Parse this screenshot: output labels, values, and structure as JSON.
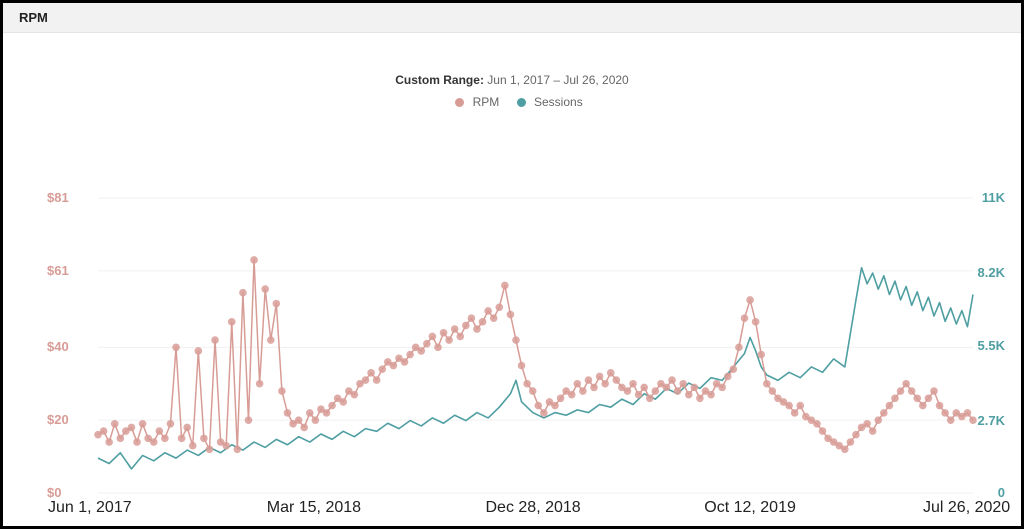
{
  "header": {
    "title": "RPM"
  },
  "range": {
    "label": "Custom Range:",
    "text": "Jun 1, 2017 – Jul 26, 2020"
  },
  "legend": [
    {
      "color": "#d89c96",
      "label": "RPM"
    },
    {
      "color": "#4e9ea2",
      "label": "Sessions"
    }
  ],
  "chart": {
    "type": "dual-axis-line",
    "background_color": "#ffffff",
    "grid_color": "#f0f0f0",
    "x": {
      "ticks": [
        "Jun 1, 2017",
        "Mar 15, 2018",
        "Dec 28, 2018",
        "Oct 12, 2019",
        "Jul 26, 2020"
      ],
      "tick_fontsize": 16,
      "tick_color": "#222222"
    },
    "y_left": {
      "min": 0,
      "max": 81,
      "ticks": [
        0,
        20,
        40,
        61,
        81
      ],
      "tick_labels": [
        "$0",
        "$20",
        "$40",
        "$61",
        "$81"
      ],
      "color": "#d89c96",
      "fontsize": 13
    },
    "y_right": {
      "min": 0,
      "max": 11000,
      "ticks": [
        0,
        2700,
        5500,
        8200,
        11000
      ],
      "tick_labels": [
        "0",
        "2.7K",
        "5.5K",
        "8.2K",
        "11K"
      ],
      "color": "#4e9ea2",
      "fontsize": 13
    },
    "series": {
      "rpm": {
        "color": "#d89c96",
        "line_width": 1.5,
        "marker_radius": 3.8,
        "marker_opacity": 0.85,
        "data": [
          [
            0,
            16
          ],
          [
            1,
            17
          ],
          [
            2,
            14
          ],
          [
            3,
            19
          ],
          [
            4,
            15
          ],
          [
            5,
            17
          ],
          [
            6,
            18
          ],
          [
            7,
            14
          ],
          [
            8,
            19
          ],
          [
            9,
            15
          ],
          [
            10,
            14
          ],
          [
            11,
            17
          ],
          [
            12,
            15
          ],
          [
            13,
            19
          ],
          [
            14,
            40
          ],
          [
            15,
            15
          ],
          [
            16,
            18
          ],
          [
            17,
            13
          ],
          [
            18,
            39
          ],
          [
            19,
            15
          ],
          [
            20,
            12
          ],
          [
            21,
            42
          ],
          [
            22,
            14
          ],
          [
            23,
            13
          ],
          [
            24,
            47
          ],
          [
            25,
            12
          ],
          [
            26,
            55
          ],
          [
            27,
            20
          ],
          [
            28,
            64
          ],
          [
            29,
            30
          ],
          [
            30,
            56
          ],
          [
            31,
            42
          ],
          [
            32,
            52
          ],
          [
            33,
            28
          ],
          [
            34,
            22
          ],
          [
            35,
            19
          ],
          [
            36,
            20
          ],
          [
            37,
            18
          ],
          [
            38,
            22
          ],
          [
            39,
            20
          ],
          [
            40,
            23
          ],
          [
            41,
            22
          ],
          [
            42,
            24
          ],
          [
            43,
            26
          ],
          [
            44,
            25
          ],
          [
            45,
            28
          ],
          [
            46,
            27
          ],
          [
            47,
            30
          ],
          [
            48,
            31
          ],
          [
            49,
            33
          ],
          [
            50,
            31
          ],
          [
            51,
            34
          ],
          [
            52,
            36
          ],
          [
            53,
            35
          ],
          [
            54,
            37
          ],
          [
            55,
            36
          ],
          [
            56,
            38
          ],
          [
            57,
            40
          ],
          [
            58,
            39
          ],
          [
            59,
            41
          ],
          [
            60,
            43
          ],
          [
            61,
            40
          ],
          [
            62,
            44
          ],
          [
            63,
            42
          ],
          [
            64,
            45
          ],
          [
            65,
            43
          ],
          [
            66,
            46
          ],
          [
            67,
            48
          ],
          [
            68,
            45
          ],
          [
            69,
            47
          ],
          [
            70,
            50
          ],
          [
            71,
            48
          ],
          [
            72,
            51
          ],
          [
            73,
            57
          ],
          [
            74,
            49
          ],
          [
            75,
            42
          ],
          [
            76,
            35
          ],
          [
            77,
            30
          ],
          [
            78,
            28
          ],
          [
            79,
            24
          ],
          [
            80,
            22
          ],
          [
            81,
            25
          ],
          [
            82,
            24
          ],
          [
            83,
            26
          ],
          [
            84,
            28
          ],
          [
            85,
            27
          ],
          [
            86,
            30
          ],
          [
            87,
            28
          ],
          [
            88,
            31
          ],
          [
            89,
            29
          ],
          [
            90,
            32
          ],
          [
            91,
            30
          ],
          [
            92,
            33
          ],
          [
            93,
            31
          ],
          [
            94,
            29
          ],
          [
            95,
            28
          ],
          [
            96,
            30
          ],
          [
            97,
            27
          ],
          [
            98,
            29
          ],
          [
            99,
            26
          ],
          [
            100,
            28
          ],
          [
            101,
            30
          ],
          [
            102,
            29
          ],
          [
            103,
            31
          ],
          [
            104,
            28
          ],
          [
            105,
            30
          ],
          [
            106,
            27
          ],
          [
            107,
            29
          ],
          [
            108,
            26
          ],
          [
            109,
            28
          ],
          [
            110,
            27
          ],
          [
            111,
            30
          ],
          [
            112,
            29
          ],
          [
            113,
            32
          ],
          [
            114,
            34
          ],
          [
            115,
            40
          ],
          [
            116,
            48
          ],
          [
            117,
            53
          ],
          [
            118,
            47
          ],
          [
            119,
            38
          ],
          [
            120,
            30
          ],
          [
            121,
            28
          ],
          [
            122,
            26
          ],
          [
            123,
            25
          ],
          [
            124,
            24
          ],
          [
            125,
            22
          ],
          [
            126,
            24
          ],
          [
            127,
            21
          ],
          [
            128,
            20
          ],
          [
            129,
            19
          ],
          [
            130,
            17
          ],
          [
            131,
            15
          ],
          [
            132,
            14
          ],
          [
            133,
            13
          ],
          [
            134,
            12
          ],
          [
            135,
            14
          ],
          [
            136,
            16
          ],
          [
            137,
            18
          ],
          [
            138,
            19
          ],
          [
            139,
            17
          ],
          [
            140,
            20
          ],
          [
            141,
            22
          ],
          [
            142,
            24
          ],
          [
            143,
            26
          ],
          [
            144,
            28
          ],
          [
            145,
            30
          ],
          [
            146,
            28
          ],
          [
            147,
            26
          ],
          [
            148,
            24
          ],
          [
            149,
            26
          ],
          [
            150,
            28
          ],
          [
            151,
            24
          ],
          [
            152,
            22
          ],
          [
            153,
            20
          ],
          [
            154,
            22
          ],
          [
            155,
            21
          ],
          [
            156,
            22
          ],
          [
            157,
            20
          ]
        ]
      },
      "sessions": {
        "color": "#4e9ea2",
        "line_width": 1.6,
        "data": [
          [
            0,
            1300
          ],
          [
            2,
            1100
          ],
          [
            4,
            1500
          ],
          [
            6,
            900
          ],
          [
            8,
            1400
          ],
          [
            10,
            1200
          ],
          [
            12,
            1500
          ],
          [
            14,
            1300
          ],
          [
            16,
            1600
          ],
          [
            18,
            1400
          ],
          [
            20,
            1700
          ],
          [
            22,
            1500
          ],
          [
            24,
            1800
          ],
          [
            26,
            1600
          ],
          [
            28,
            1900
          ],
          [
            30,
            1700
          ],
          [
            32,
            2000
          ],
          [
            34,
            1800
          ],
          [
            36,
            2100
          ],
          [
            38,
            1900
          ],
          [
            40,
            2200
          ],
          [
            42,
            2000
          ],
          [
            44,
            2300
          ],
          [
            46,
            2100
          ],
          [
            48,
            2400
          ],
          [
            50,
            2300
          ],
          [
            52,
            2600
          ],
          [
            54,
            2400
          ],
          [
            56,
            2700
          ],
          [
            58,
            2500
          ],
          [
            60,
            2800
          ],
          [
            62,
            2600
          ],
          [
            64,
            2900
          ],
          [
            66,
            2700
          ],
          [
            68,
            3000
          ],
          [
            70,
            2800
          ],
          [
            72,
            3200
          ],
          [
            74,
            3700
          ],
          [
            75,
            4200
          ],
          [
            76,
            3400
          ],
          [
            78,
            3000
          ],
          [
            80,
            2800
          ],
          [
            82,
            3000
          ],
          [
            84,
            2900
          ],
          [
            86,
            3100
          ],
          [
            88,
            3000
          ],
          [
            90,
            3300
          ],
          [
            92,
            3200
          ],
          [
            94,
            3500
          ],
          [
            96,
            3300
          ],
          [
            98,
            3700
          ],
          [
            100,
            3500
          ],
          [
            102,
            3900
          ],
          [
            104,
            3700
          ],
          [
            106,
            4100
          ],
          [
            108,
            3900
          ],
          [
            110,
            4300
          ],
          [
            112,
            4200
          ],
          [
            114,
            4700
          ],
          [
            116,
            5200
          ],
          [
            117,
            5800
          ],
          [
            118,
            5300
          ],
          [
            119,
            4700
          ],
          [
            120,
            4400
          ],
          [
            122,
            4200
          ],
          [
            124,
            4500
          ],
          [
            126,
            4300
          ],
          [
            128,
            4700
          ],
          [
            130,
            4500
          ],
          [
            132,
            5000
          ],
          [
            134,
            4700
          ],
          [
            136,
            7200
          ],
          [
            137,
            8400
          ],
          [
            138,
            7800
          ],
          [
            139,
            8200
          ],
          [
            140,
            7600
          ],
          [
            141,
            8100
          ],
          [
            142,
            7400
          ],
          [
            143,
            7900
          ],
          [
            144,
            7200
          ],
          [
            145,
            7700
          ],
          [
            146,
            7000
          ],
          [
            147,
            7500
          ],
          [
            148,
            6800
          ],
          [
            149,
            7300
          ],
          [
            150,
            6600
          ],
          [
            151,
            7100
          ],
          [
            152,
            6400
          ],
          [
            153,
            6900
          ],
          [
            154,
            6300
          ],
          [
            155,
            6800
          ],
          [
            156,
            6200
          ],
          [
            157,
            7400
          ]
        ]
      }
    }
  }
}
